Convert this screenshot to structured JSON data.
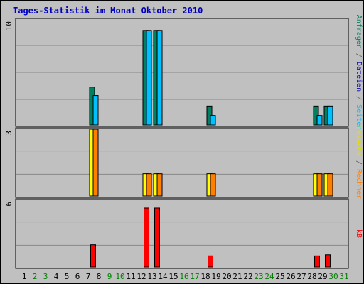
{
  "chart_data": {
    "type": "bar",
    "title": "Tages-Statistik im Monat Oktober 2010",
    "days": [
      "1",
      "2",
      "3",
      "4",
      "5",
      "6",
      "7",
      "8",
      "9",
      "10",
      "11",
      "12",
      "13",
      "14",
      "15",
      "16",
      "17",
      "18",
      "19",
      "20",
      "21",
      "22",
      "23",
      "24",
      "25",
      "26",
      "27",
      "28",
      "29",
      "30",
      "31"
    ],
    "weekend_days": [
      "2",
      "3",
      "9",
      "10",
      "16",
      "17",
      "23",
      "24",
      "30",
      "31"
    ],
    "colors": {
      "anfragen": "#008060",
      "dateien": "#00c0ff",
      "seiten": "#00c0ff",
      "besuche": "#ffff00",
      "rechner": "#ff8000",
      "kb": "#ff0000",
      "weekday_label": "#000000",
      "weekend_label": "#008000",
      "title": "#0000c0",
      "panel": "#c0c0c0",
      "grid": "#888888"
    },
    "panels": [
      {
        "ymax": "10",
        "ymax_value": 10,
        "series": [
          {
            "key": "anfragen",
            "values": {
              "8": 3.6,
              "13": 9.0,
              "14": 9.0,
              "19": 1.8,
              "29": 1.8,
              "30": 1.8
            }
          },
          {
            "key": "dateien",
            "values": {
              "8": 2.8,
              "13": 9.0,
              "14": 9.0,
              "19": 0.9,
              "29": 0.9,
              "30": 1.8
            }
          }
        ],
        "side_labels": [
          {
            "text": "Anfragen",
            "color": "#008060"
          },
          {
            "text": " / ",
            "color": "#606060"
          },
          {
            "text": "Dateien",
            "color": "#0000c0"
          },
          {
            "text": " / ",
            "color": "#606060"
          },
          {
            "text": "Seiten",
            "color": "#00c0ff"
          }
        ]
      },
      {
        "ymax": "3",
        "ymax_value": 3,
        "series": [
          {
            "key": "besuche",
            "values": {
              "8": 3,
              "13": 1,
              "14": 1,
              "19": 1,
              "29": 1,
              "30": 1
            }
          },
          {
            "key": "rechner",
            "values": {
              "8": 3,
              "13": 1,
              "14": 1,
              "19": 1,
              "29": 1,
              "30": 1
            }
          }
        ],
        "side_labels": [
          {
            "text": "Besuche",
            "color": "#e0e000"
          },
          {
            "text": " / ",
            "color": "#606060"
          },
          {
            "text": "Rechner",
            "color": "#ff8000"
          }
        ]
      },
      {
        "ymax": "6",
        "ymax_value": 6,
        "series": [
          {
            "key": "kb",
            "values": {
              "8": 2,
              "13": 5.3,
              "14": 5.3,
              "19": 1,
              "29": 1,
              "30": 1.1
            }
          }
        ],
        "side_labels": [
          {
            "text": "kB",
            "color": "#ff0000"
          }
        ]
      }
    ]
  }
}
